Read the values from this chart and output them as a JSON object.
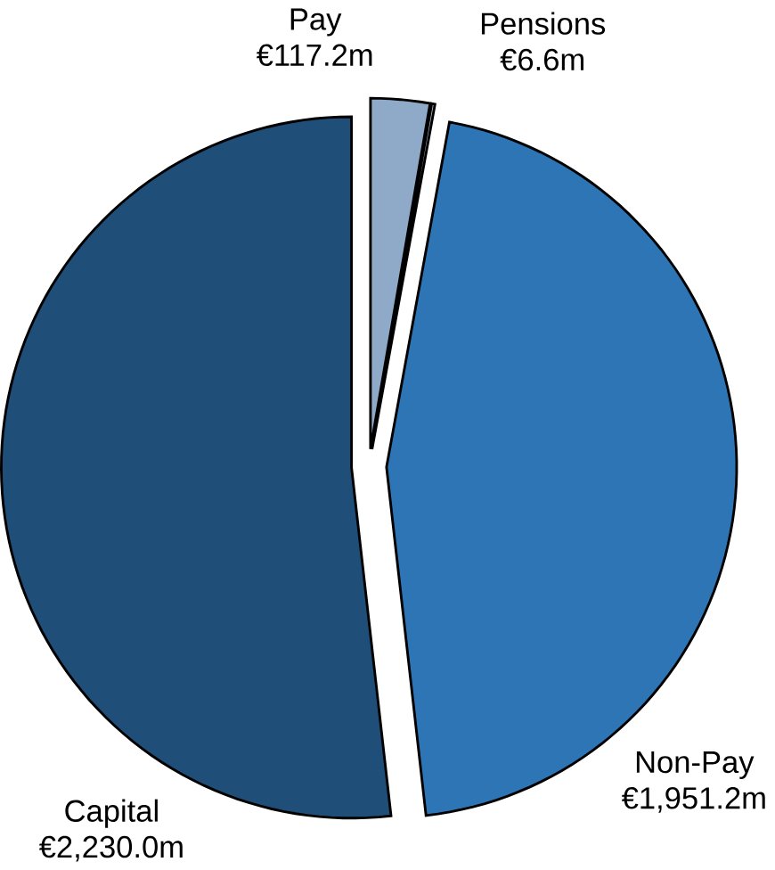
{
  "chart_data": {
    "type": "pie",
    "categories": [
      "Pay",
      "Pensions",
      "Non-Pay",
      "Capital"
    ],
    "values": [
      117.2,
      6.6,
      1951.2,
      2230.0
    ],
    "value_labels": [
      "€117.2m",
      "€6.6m",
      "€1,951.2m",
      "€2,230.0m"
    ],
    "colors": [
      "#8fa9c9",
      "#a9bdd6",
      "#2e75b6",
      "#1f4e79"
    ]
  }
}
